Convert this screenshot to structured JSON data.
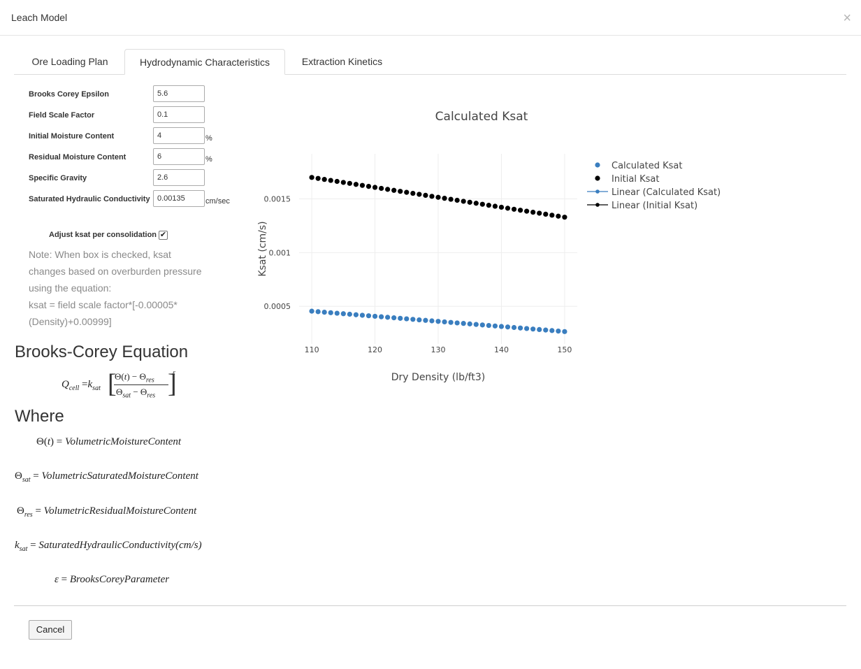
{
  "modal": {
    "title": "Leach Model",
    "close_glyph": "×"
  },
  "tabs": [
    {
      "label": "Ore Loading Plan"
    },
    {
      "label": "Hydrodynamic Characteristics"
    },
    {
      "label": "Extraction Kinetics"
    }
  ],
  "form": {
    "epsilon": {
      "label": "Brooks Corey Epsilon",
      "value": "5.6",
      "unit": ""
    },
    "field_scale": {
      "label": "Field Scale Factor",
      "value": "0.1",
      "unit": ""
    },
    "initial_moisture": {
      "label": "Initial Moisture Content",
      "value": "4",
      "unit": "%"
    },
    "residual_moisture": {
      "label": "Residual Moisture Content",
      "value": "6",
      "unit": "%"
    },
    "specific_gravity": {
      "label": "Specific Gravity",
      "value": "2.6",
      "unit": ""
    },
    "sat_conductivity": {
      "label": "Saturated Hydraulic Conductivity",
      "value": "0.00135",
      "unit": "cm/sec"
    },
    "adjust": {
      "label": "Adjust ksat per consolidation",
      "checked": true
    },
    "note": {
      "line1": "Note: When box is checked, ksat",
      "line2": "changes based on overburden pressure",
      "line3": "using the equation:",
      "line4": "ksat = field scale factor*[-0.00005*",
      "line5": "(Density)+0.00999]"
    }
  },
  "equation_section": {
    "heading": "Brooks-Corey Equation",
    "where_heading": "Where"
  },
  "where_lines": {
    "theta_t": "VolumetricMoistureContent",
    "theta_sat": "VolumetricSaturatedMoistureContent",
    "theta_res": "VolumetricResidualMoistureContent",
    "ksat": "SaturatedHydraulicConductivity(cm/s)",
    "epsilon": "BrooksCoreyParameter"
  },
  "footer": {
    "cancel_label": "Cancel"
  },
  "chart_data": {
    "type": "scatter",
    "title": "Calculated Ksat",
    "xlabel": "Dry Density (lb/ft3)",
    "ylabel": "Ksat (cm/s)",
    "xlim": [
      108,
      152
    ],
    "ylim": [
      0.00015,
      0.00192
    ],
    "xticks": [
      110,
      120,
      130,
      140,
      150
    ],
    "yticks": [
      0.0005,
      0.001,
      0.0015
    ],
    "ytick_labels": [
      "0.0005",
      "0.001",
      "0.0015"
    ],
    "grid": true,
    "legend_position": "right",
    "x_range": {
      "start": 110,
      "end": 150,
      "step": 1
    },
    "series": [
      {
        "name": "Calculated Ksat",
        "color": "#3a7ebf",
        "mode": "markers",
        "y_start": 0.000455,
        "y_end": 0.000265
      },
      {
        "name": "Initial Ksat",
        "color": "#000000",
        "mode": "markers",
        "y_start": 0.0017,
        "y_end": 0.00133
      },
      {
        "name": "Linear (Calculated Ksat)",
        "color": "#3a7ebf",
        "mode": "lines+markers",
        "legend_only": true
      },
      {
        "name": "Linear (Initial Ksat)",
        "color": "#000000",
        "mode": "lines+markers",
        "legend_only": true
      }
    ]
  }
}
